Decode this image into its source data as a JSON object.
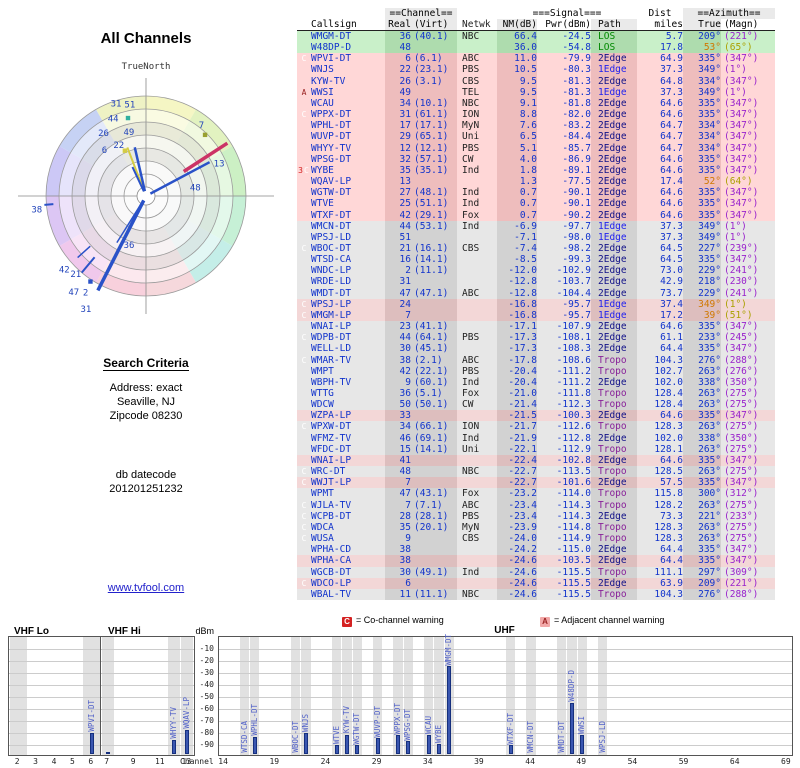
{
  "title": "All Channels",
  "link": "www.tvfool.com",
  "search_criteria": {
    "heading": "Search Criteria",
    "address": "Address: exact",
    "city": "Seaville, NJ",
    "zip": "Zipcode 08230"
  },
  "datecode": {
    "label": "db datecode",
    "value": "201201251232"
  },
  "legend": {
    "co": {
      "symbol": "C",
      "text": "= Co-channel warning"
    },
    "adj": {
      "symbol": "A",
      "text": "= Adjacent channel warning"
    }
  },
  "table": {
    "headers": {
      "channel_group": "==Channel==",
      "signal_group": "===Signal===",
      "dist_group": "Dist",
      "azimuth_group": "==Azimuth==",
      "callsign": "Callsign",
      "real": "Real",
      "virt": "(Virt)",
      "netwk": "Netwk",
      "nm": "NM(dB)",
      "pwr": "Pwr(dBm)",
      "path": "Path",
      "miles": "miles",
      "true": "True",
      "magn": "(Magn)"
    },
    "rows": [
      [
        "",
        "WMGM-DT",
        "36",
        "(40.1)",
        "NBC",
        "66.4",
        "-24.5",
        "LOS",
        "5.7",
        "209°",
        "(221°)",
        "g",
        0
      ],
      [
        "",
        "W48DP-D",
        "48",
        "",
        "",
        "36.0",
        "-54.8",
        "LOS",
        "17.8",
        "53°",
        "(65°)",
        "g",
        1
      ],
      [
        "C",
        "WPVI-DT",
        "6",
        "(6.1)",
        "ABC",
        "11.0",
        "-79.9",
        "2Edge",
        "64.9",
        "335°",
        "(347°)",
        "r",
        0
      ],
      [
        "",
        "WNJS",
        "22",
        "(23.1)",
        "PBS",
        "10.5",
        "-80.3",
        "1Edge",
        "37.3",
        "349°",
        "(1°)",
        "r",
        0
      ],
      [
        "",
        "KYW-TV",
        "26",
        "(3.1)",
        "CBS",
        "9.5",
        "-81.3",
        "2Edge",
        "64.8",
        "334°",
        "(347°)",
        "r",
        0
      ],
      [
        "A",
        "WWSI",
        "49",
        "",
        "TEL",
        "9.5",
        "-81.3",
        "1Edge",
        "37.3",
        "349°",
        "(1°)",
        "r",
        0
      ],
      [
        "",
        "WCAU",
        "34",
        "(10.1)",
        "NBC",
        "9.1",
        "-81.8",
        "2Edge",
        "64.6",
        "335°",
        "(347°)",
        "r",
        0
      ],
      [
        "C",
        "WPPX-DT",
        "31",
        "(61.1)",
        "ION",
        "8.8",
        "-82.0",
        "2Edge",
        "64.6",
        "335°",
        "(347°)",
        "r",
        0
      ],
      [
        "",
        "WPHL-DT",
        "17",
        "(17.1)",
        "MyN",
        "7.6",
        "-83.2",
        "2Edge",
        "64.7",
        "334°",
        "(347°)",
        "r",
        0
      ],
      [
        "",
        "WUVP-DT",
        "29",
        "(65.1)",
        "Uni",
        "6.5",
        "-84.4",
        "2Edge",
        "64.7",
        "334°",
        "(347°)",
        "r",
        0
      ],
      [
        "",
        "WHYY-TV",
        "12",
        "(12.1)",
        "PBS",
        "5.1",
        "-85.7",
        "2Edge",
        "64.7",
        "334°",
        "(347°)",
        "r",
        0
      ],
      [
        "",
        "WPSG-DT",
        "32",
        "(57.1)",
        "CW",
        "4.0",
        "-86.9",
        "2Edge",
        "64.6",
        "335°",
        "(347°)",
        "r",
        0
      ],
      [
        "3C",
        "WYBE",
        "35",
        "(35.1)",
        "Ind",
        "1.8",
        "-89.1",
        "2Edge",
        "64.6",
        "335°",
        "(347°)",
        "r",
        0
      ],
      [
        "",
        "WQAV-LP",
        "13",
        "",
        "",
        "1.3",
        "-77.5",
        "2Edge",
        "17.4",
        "52°",
        "(64°)",
        "r",
        1
      ],
      [
        "",
        "WGTW-DT",
        "27",
        "(48.1)",
        "Ind",
        "0.7",
        "-90.1",
        "2Edge",
        "64.6",
        "335°",
        "(347°)",
        "r",
        0
      ],
      [
        "",
        "WTVE",
        "25",
        "(51.1)",
        "Ind",
        "0.7",
        "-90.1",
        "2Edge",
        "64.6",
        "335°",
        "(347°)",
        "r",
        0
      ],
      [
        "",
        "WTXF-DT",
        "42",
        "(29.1)",
        "Fox",
        "0.7",
        "-90.2",
        "2Edge",
        "64.6",
        "335°",
        "(347°)",
        "r",
        0
      ],
      [
        "",
        "WMCN-DT",
        "44",
        "(53.1)",
        "Ind",
        "-6.9",
        "-97.7",
        "1Edge",
        "37.3",
        "349°",
        "(1°)",
        "y",
        0
      ],
      [
        "",
        "WPSJ-LD",
        "51",
        "",
        "",
        "-7.1",
        "-98.0",
        "1Edge",
        "37.3",
        "349°",
        "(1°)",
        "y",
        0
      ],
      [
        "C",
        "WBOC-DT",
        "21",
        "(16.1)",
        "CBS",
        "-7.4",
        "-98.2",
        "2Edge",
        "64.5",
        "227°",
        "(239°)",
        "y",
        0
      ],
      [
        "",
        "WTSD-CA",
        "16",
        "(14.1)",
        "",
        "-8.5",
        "-99.3",
        "2Edge",
        "64.5",
        "335°",
        "(347°)",
        "y",
        0
      ],
      [
        "",
        "WNDC-LP",
        "2",
        "(11.1)",
        "",
        "-12.0",
        "-102.9",
        "2Edge",
        "73.0",
        "229°",
        "(241°)",
        "y",
        0
      ],
      [
        "",
        "WRDE-LD",
        "31",
        "",
        "",
        "-12.8",
        "-103.7",
        "2Edge",
        "42.9",
        "218°",
        "(230°)",
        "y",
        0
      ],
      [
        "",
        "WMDT-DT",
        "47",
        "(47.1)",
        "ABC",
        "-12.8",
        "-104.4",
        "2Edge",
        "73.7",
        "229°",
        "(241°)",
        "y",
        0
      ],
      [
        "C",
        "WPSJ-LP",
        "24",
        "",
        "",
        "-16.8",
        "-95.7",
        "1Edge",
        "37.4",
        "349°",
        "(1°)",
        "p",
        1
      ],
      [
        "C",
        "WMGM-LP",
        "7",
        "",
        "",
        "-16.8",
        "-95.7",
        "1Edge",
        "17.2",
        "39°",
        "(51°)",
        "p",
        1
      ],
      [
        "",
        "WNAI-LP",
        "23",
        "(41.1)",
        "",
        "-17.1",
        "-107.9",
        "2Edge",
        "64.6",
        "335°",
        "(347°)",
        "y",
        0
      ],
      [
        "C",
        "WDPB-DT",
        "44",
        "(64.1)",
        "PBS",
        "-17.3",
        "-108.1",
        "2Edge",
        "61.1",
        "233°",
        "(245°)",
        "y",
        0
      ],
      [
        "",
        "WELL-LD",
        "30",
        "(45.1)",
        "",
        "-17.3",
        "-108.3",
        "2Edge",
        "64.4",
        "335°",
        "(347°)",
        "y",
        0
      ],
      [
        "C",
        "WMAR-TV",
        "38",
        "(2.1)",
        "ABC",
        "-17.8",
        "-108.6",
        "Tropo",
        "104.3",
        "276°",
        "(288°)",
        "y",
        0
      ],
      [
        "",
        "WMPT",
        "42",
        "(22.1)",
        "PBS",
        "-20.4",
        "-111.2",
        "Tropo",
        "102.7",
        "263°",
        "(276°)",
        "y",
        0
      ],
      [
        "",
        "WBPH-TV",
        "9",
        "(60.1)",
        "Ind",
        "-20.4",
        "-111.2",
        "2Edge",
        "102.0",
        "338°",
        "(350°)",
        "y",
        0
      ],
      [
        "",
        "WTTG",
        "36",
        "(5.1)",
        "Fox",
        "-21.0",
        "-111.8",
        "Tropo",
        "128.4",
        "263°",
        "(275°)",
        "y",
        0
      ],
      [
        "",
        "WDCW",
        "50",
        "(50.1)",
        "CW",
        "-21.4",
        "-112.3",
        "Tropo",
        "128.4",
        "263°",
        "(275°)",
        "y",
        0
      ],
      [
        "",
        "WZPA-LP",
        "33",
        "",
        "",
        "-21.5",
        "-100.3",
        "2Edge",
        "64.6",
        "335°",
        "(347°)",
        "p",
        0
      ],
      [
        "C",
        "WPXW-DT",
        "34",
        "(66.1)",
        "ION",
        "-21.7",
        "-112.6",
        "Tropo",
        "128.3",
        "263°",
        "(275°)",
        "y",
        0
      ],
      [
        "",
        "WFMZ-TV",
        "46",
        "(69.1)",
        "Ind",
        "-21.9",
        "-112.8",
        "2Edge",
        "102.0",
        "338°",
        "(350°)",
        "y",
        0
      ],
      [
        "",
        "WFDC-DT",
        "15",
        "(14.1)",
        "Uni",
        "-22.1",
        "-112.9",
        "Tropo",
        "128.1",
        "263°",
        "(275°)",
        "y",
        0
      ],
      [
        "",
        "WNAI-LP",
        "41",
        "",
        "",
        "-22.4",
        "-102.8",
        "2Edge",
        "64.6",
        "335°",
        "(347°)",
        "p",
        0
      ],
      [
        "C",
        "WRC-DT",
        "48",
        "",
        "NBC",
        "-22.7",
        "-113.5",
        "Tropo",
        "128.5",
        "263°",
        "(275°)",
        "y",
        0
      ],
      [
        "C",
        "WWJT-LP",
        "7",
        "",
        "",
        "-22.7",
        "-101.6",
        "2Edge",
        "57.5",
        "335°",
        "(347°)",
        "p",
        0
      ],
      [
        "",
        "WPMT",
        "47",
        "(43.1)",
        "Fox",
        "-23.2",
        "-114.0",
        "Tropo",
        "115.8",
        "300°",
        "(312°)",
        "y",
        0
      ],
      [
        "C",
        "WJLA-TV",
        "7",
        "(7.1)",
        "ABC",
        "-23.4",
        "-114.3",
        "Tropo",
        "128.2",
        "263°",
        "(275°)",
        "y",
        0
      ],
      [
        "C",
        "WCPB-DT",
        "28",
        "(28.1)",
        "PBS",
        "-23.4",
        "-114.3",
        "2Edge",
        "73.3",
        "221°",
        "(233°)",
        "y",
        0
      ],
      [
        "C",
        "WDCA",
        "35",
        "(20.1)",
        "MyN",
        "-23.9",
        "-114.8",
        "Tropo",
        "128.3",
        "263°",
        "(275°)",
        "y",
        0
      ],
      [
        "C",
        "WUSA",
        "9",
        "",
        "CBS",
        "-24.0",
        "-114.9",
        "Tropo",
        "128.3",
        "263°",
        "(275°)",
        "y",
        0
      ],
      [
        "",
        "WPHA-CD",
        "38",
        "",
        "",
        "-24.2",
        "-115.0",
        "2Edge",
        "64.4",
        "335°",
        "(347°)",
        "y",
        0
      ],
      [
        "",
        "WPHA-CA",
        "38",
        "",
        "",
        "-24.6",
        "-103.5",
        "2Edge",
        "64.4",
        "335°",
        "(347°)",
        "p",
        0
      ],
      [
        "",
        "WGCB-DT",
        "30",
        "(49.1)",
        "Ind",
        "-24.6",
        "-115.5",
        "Tropo",
        "111.1",
        "297°",
        "(309°)",
        "y",
        0
      ],
      [
        "C",
        "WDCO-LP",
        "6",
        "",
        "",
        "-24.6",
        "-115.5",
        "2Edge",
        "63.9",
        "209°",
        "(221°)",
        "p",
        0
      ],
      [
        "",
        "WBAL-TV",
        "11",
        "(11.1)",
        "NBC",
        "-24.6",
        "-115.5",
        "Tropo",
        "104.3",
        "276°",
        "(288°)",
        "y",
        0
      ]
    ]
  },
  "radar": {
    "compass": "TrueNorth",
    "wedge_colors": [
      "#f5f6c4",
      "#e2f2c0",
      "#ccf0c4",
      "#c6f0d6",
      "#c4eee8",
      "#f6d8dc",
      "#f8d0dc",
      "#f0c8ec",
      "#dcc6f4",
      "#ccc8f6",
      "#c6d2f4",
      "#eef2c4"
    ],
    "ring_fracs": [
      1,
      0.87,
      0.74,
      0.61,
      0.48,
      0.35,
      0.22
    ],
    "lines": [
      {
        "az": 207,
        "r0": 0.05,
        "r1": 1.06,
        "w": 3.5,
        "c": "#2a52c8"
      },
      {
        "az": 212,
        "r0": 0.05,
        "r1": 0.55,
        "w": 1.5,
        "c": "#2a52c8"
      },
      {
        "az": 57,
        "r0": 0.45,
        "r1": 0.97,
        "w": 3.5,
        "c": "#cc3366"
      },
      {
        "az": 62,
        "r0": 0.05,
        "r1": 0.72,
        "w": 2.5,
        "c": "#2a52c8"
      },
      {
        "az": 339,
        "r0": 0.05,
        "r1": 0.52,
        "w": 2,
        "c": "#d4cc44"
      },
      {
        "az": 347,
        "r0": 0.05,
        "r1": 0.5,
        "w": 2.5,
        "c": "#2a52c8"
      },
      {
        "az": 335,
        "r0": 0.05,
        "r1": 0.32,
        "w": 2,
        "c": "#2a52c8"
      },
      {
        "az": 220,
        "r0": 0.8,
        "r1": 1.0,
        "w": 2,
        "c": "#2a52c8"
      },
      {
        "az": 228,
        "r0": 0.75,
        "r1": 0.92,
        "w": 1.5,
        "c": "#2a52c8"
      },
      {
        "az": 265,
        "r0": 0.93,
        "r1": 1.02,
        "w": 2,
        "c": "#2a52c8"
      }
    ],
    "dots": [
      {
        "az": 44,
        "r": 0.85,
        "c": "#99a030"
      },
      {
        "az": 347,
        "r": 0.8,
        "c": "#30b0a0"
      },
      {
        "az": 335,
        "r": 0.5,
        "c": "#d4cc44"
      },
      {
        "az": 213,
        "r": 1.02,
        "c": "#2a52c8"
      }
    ],
    "labels": [
      {
        "t": "36",
        "az": 199,
        "r": 0.52
      },
      {
        "t": "13",
        "az": 66,
        "r": 0.8
      },
      {
        "t": "48",
        "az": 80,
        "r": 0.5
      },
      {
        "t": "7",
        "az": 38,
        "r": 0.9
      },
      {
        "t": "38",
        "az": 263,
        "r": 1.1
      },
      {
        "t": "51",
        "az": 350,
        "r": 0.93
      },
      {
        "t": "31",
        "az": 342,
        "r": 0.97
      },
      {
        "t": "44",
        "az": 337,
        "r": 0.84
      },
      {
        "t": "49",
        "az": 345,
        "r": 0.66
      },
      {
        "t": "26",
        "az": 326,
        "r": 0.76
      },
      {
        "t": "22",
        "az": 332,
        "r": 0.58
      },
      {
        "t": "6",
        "az": 318,
        "r": 0.62
      },
      {
        "t": "42",
        "az": 228,
        "r": 1.1
      },
      {
        "t": "21",
        "az": 222,
        "r": 1.05
      },
      {
        "t": "47",
        "az": 217,
        "r": 1.2
      },
      {
        "t": "2",
        "az": 212,
        "r": 1.14
      },
      {
        "t": "31",
        "az": 208,
        "r": 1.28
      }
    ]
  },
  "bottom": {
    "dbm_label": "dBm",
    "channel_label": "Channel",
    "dbm_ticks": [
      -10,
      -20,
      -30,
      -40,
      -50,
      -60,
      -70,
      -80,
      -90
    ],
    "sections": [
      {
        "id": "vhf-lo",
        "label": "VHF Lo",
        "min": 2,
        "max": 6,
        "ticks": [
          2,
          3,
          4,
          5,
          6
        ],
        "stations": [
          {
            "ch": 2,
            "pwr": -102.9,
            "cs": ""
          },
          {
            "ch": 6,
            "pwr": -79.9,
            "cs": "WPVI-DT"
          }
        ]
      },
      {
        "id": "vhf-hi",
        "label": "VHF Hi",
        "min": 7,
        "max": 13,
        "ticks": [
          7,
          9,
          11,
          13
        ],
        "stations": [
          {
            "ch": 7,
            "pwr": -95.7,
            "cs": ""
          },
          {
            "ch": 12,
            "pwr": -85.7,
            "cs": "WHYY-TV"
          },
          {
            "ch": 13,
            "pwr": -77.5,
            "cs": "WQAV-LP"
          }
        ]
      },
      {
        "id": "uhf",
        "label": "UHF",
        "min": 14,
        "max": 69,
        "ticks": [
          14,
          19,
          24,
          29,
          34,
          39,
          44,
          49,
          54,
          59,
          64,
          69
        ],
        "stations": [
          {
            "ch": 16,
            "pwr": -99.3,
            "cs": "WTSD-CA"
          },
          {
            "ch": 17,
            "pwr": -83.2,
            "cs": "WPHL-DT"
          },
          {
            "ch": 21,
            "pwr": -98.2,
            "cs": "WBOC-DT"
          },
          {
            "ch": 22,
            "pwr": -80.3,
            "cs": "WNJS"
          },
          {
            "ch": 25,
            "pwr": -90.1,
            "cs": "WTVE"
          },
          {
            "ch": 26,
            "pwr": -81.3,
            "cs": "KYW-TV"
          },
          {
            "ch": 27,
            "pwr": -90.1,
            "cs": "WGTW-DT"
          },
          {
            "ch": 29,
            "pwr": -84.4,
            "cs": "WUVP-DT"
          },
          {
            "ch": 31,
            "pwr": -82.0,
            "cs": "WPPX-DT"
          },
          {
            "ch": 32,
            "pwr": -86.9,
            "cs": "WPSG-DT"
          },
          {
            "ch": 34,
            "pwr": -81.8,
            "cs": "WCAU"
          },
          {
            "ch": 35,
            "pwr": -89.1,
            "cs": "WYBE"
          },
          {
            "ch": 36,
            "pwr": -24.5,
            "cs": "WMGM-DT"
          },
          {
            "ch": 42,
            "pwr": -90.2,
            "cs": "WTXF-DT"
          },
          {
            "ch": 44,
            "pwr": -97.7,
            "cs": "WMCN-DT"
          },
          {
            "ch": 47,
            "pwr": -104.4,
            "cs": "WMDT-DT"
          },
          {
            "ch": 48,
            "pwr": -54.8,
            "cs": "W48DP-D"
          },
          {
            "ch": 49,
            "pwr": -81.3,
            "cs": "WWSI"
          },
          {
            "ch": 51,
            "pwr": -98.0,
            "cs": "WPSJ-LD"
          }
        ]
      }
    ]
  }
}
